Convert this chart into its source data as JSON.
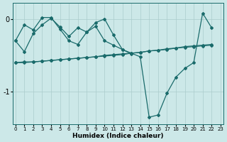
{
  "background_color": "#cce8e8",
  "grid_color": "#aacccc",
  "line_color": "#1a6b6b",
  "xlim": [
    -0.3,
    23.3
  ],
  "ylim": [
    -1.45,
    0.22
  ],
  "yticks": [
    0,
    -1
  ],
  "xticks": [
    0,
    1,
    2,
    3,
    4,
    5,
    6,
    7,
    8,
    9,
    10,
    11,
    12,
    13,
    14,
    15,
    16,
    17,
    18,
    19,
    20,
    21,
    22,
    23
  ],
  "xlabel": "Humidex (Indice chaleur)",
  "series": [
    [
      0,
      null,
      null,
      null,
      null,
      null,
      null,
      null,
      null,
      null,
      null,
      null,
      null,
      null,
      null,
      null,
      null,
      null,
      null,
      null,
      null,
      null,
      null,
      null
    ],
    [
      null,
      null,
      null,
      null,
      null,
      null,
      null,
      null,
      null,
      null,
      null,
      null,
      null,
      null,
      null,
      null,
      null,
      null,
      null,
      null,
      null,
      null,
      null,
      null
    ],
    [
      null,
      null,
      null,
      null,
      null,
      null,
      null,
      null,
      null,
      null,
      null,
      null,
      null,
      null,
      null,
      null,
      null,
      null,
      null,
      null,
      null,
      null,
      null,
      null
    ],
    [
      null,
      null,
      null,
      null,
      null,
      null,
      null,
      null,
      null,
      null,
      null,
      null,
      null,
      null,
      null,
      null,
      null,
      null,
      null,
      null,
      null,
      null,
      null,
      null
    ]
  ],
  "line1_x": [
    0,
    1,
    2,
    3,
    4,
    5,
    6,
    7,
    8,
    9,
    10,
    11,
    12,
    13
  ],
  "line1_y": [
    -0.3,
    -0.08,
    -0.15,
    0.02,
    0.02,
    -0.14,
    -0.3,
    -0.35,
    -0.18,
    -0.1,
    -0.3,
    -0.36,
    -0.42,
    -0.48
  ],
  "line2_x": [
    0,
    1,
    2,
    3,
    4,
    5,
    6,
    7,
    8,
    9,
    10,
    11,
    12,
    14,
    15,
    16,
    17,
    18,
    19,
    20,
    21,
    22
  ],
  "line2_y": [
    -0.3,
    -0.45,
    -0.2,
    -0.08,
    0.01,
    -0.11,
    -0.24,
    -0.12,
    -0.18,
    -0.05,
    0.0,
    -0.22,
    -0.42,
    -0.52,
    -1.35,
    -1.32,
    -1.02,
    -0.8,
    -0.68,
    -0.6,
    0.08,
    -0.12
  ],
  "line3_x": [
    0,
    1,
    2,
    3,
    4,
    5,
    6,
    7,
    8,
    9,
    10,
    11,
    12,
    13,
    14,
    15,
    16,
    17,
    18,
    19,
    20,
    21,
    22
  ],
  "line3_y": [
    -0.6,
    -0.6,
    -0.59,
    -0.58,
    -0.57,
    -0.56,
    -0.55,
    -0.54,
    -0.53,
    -0.52,
    -0.51,
    -0.5,
    -0.49,
    -0.47,
    -0.46,
    -0.44,
    -0.43,
    -0.42,
    -0.4,
    -0.39,
    -0.38,
    -0.37,
    -0.36
  ],
  "line4_x": [
    0,
    1,
    2,
    3,
    4,
    5,
    6,
    7,
    8,
    9,
    10,
    11,
    12,
    13,
    14,
    15,
    16,
    17,
    18,
    19,
    20,
    21,
    22
  ],
  "line4_y": [
    -0.6,
    -0.59,
    -0.59,
    -0.58,
    -0.57,
    -0.56,
    -0.55,
    -0.54,
    -0.53,
    -0.52,
    -0.5,
    -0.49,
    -0.48,
    -0.47,
    -0.46,
    -0.44,
    -0.43,
    -0.41,
    -0.4,
    -0.38,
    -0.37,
    -0.36,
    -0.35
  ]
}
